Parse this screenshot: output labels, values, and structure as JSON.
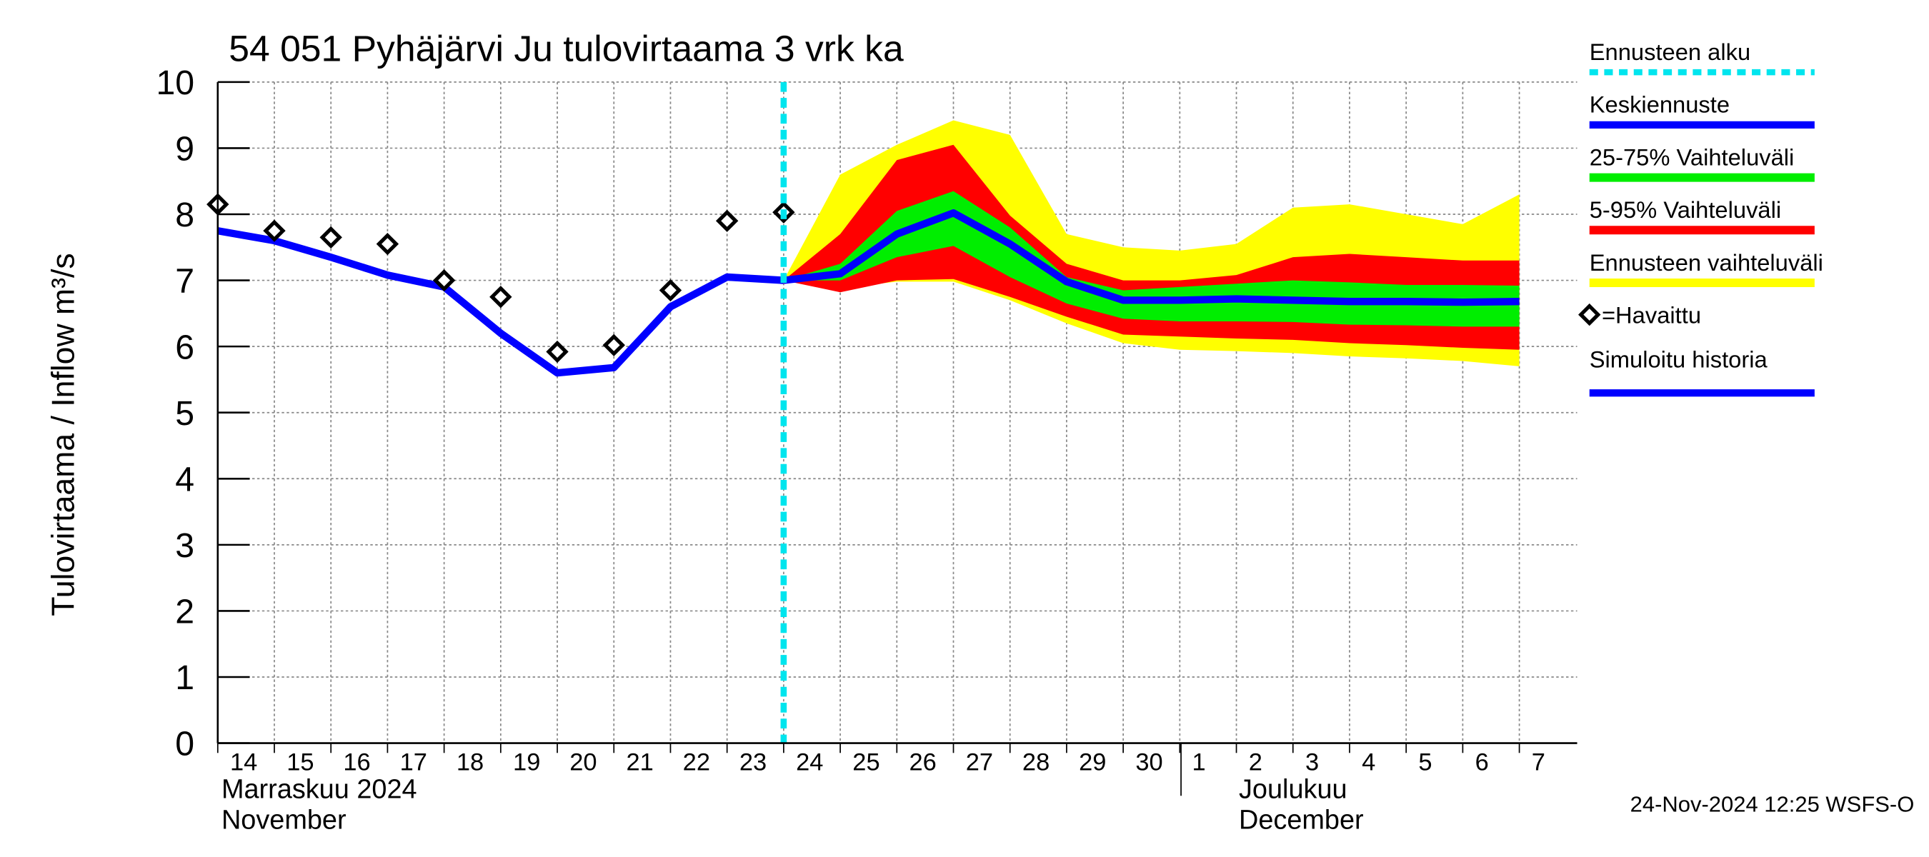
{
  "chart_data": {
    "type": "line",
    "title": "54 051 Pyhäjärvi Ju tulovirtaama 3 vrk ka",
    "y_label": "Tulovirtaama / Inflow    m³/s",
    "timestamp": "24-Nov-2024 12:25 WSFS-O",
    "months": [
      {
        "fi": "Marraskuu 2024",
        "en": "November"
      },
      {
        "fi": "Joulukuu",
        "en": "December"
      }
    ],
    "categories": [
      "14",
      "15",
      "16",
      "17",
      "18",
      "19",
      "20",
      "21",
      "22",
      "23",
      "24",
      "25",
      "26",
      "27",
      "28",
      "29",
      "30",
      "1",
      "2",
      "3",
      "4",
      "5",
      "6",
      "7"
    ],
    "ylim": [
      0,
      10
    ],
    "yticks": [
      0,
      1,
      2,
      3,
      4,
      5,
      6,
      7,
      8,
      9,
      10
    ],
    "grid": true,
    "forecast_start": {
      "name": "Ennusteen alku",
      "color": "#00e5ee",
      "x": "24"
    },
    "series": [
      {
        "name": "Keskiennuste",
        "color": "#0000ff",
        "style": "line",
        "values": [
          null,
          null,
          null,
          null,
          null,
          null,
          null,
          null,
          null,
          null,
          7.0,
          7.1,
          7.7,
          8.02,
          7.55,
          6.98,
          6.7,
          6.7,
          6.72,
          6.7,
          6.68,
          6.68,
          6.67,
          6.68
        ]
      },
      {
        "name": "25-75% Vaihteluväli",
        "color": "#00ee00",
        "style": "band",
        "low": [
          null,
          null,
          null,
          null,
          null,
          null,
          null,
          null,
          null,
          null,
          7.0,
          7.0,
          7.35,
          7.52,
          7.05,
          6.65,
          6.42,
          6.38,
          6.38,
          6.37,
          6.33,
          6.32,
          6.3,
          6.3
        ],
        "high": [
          null,
          null,
          null,
          null,
          null,
          null,
          null,
          null,
          null,
          null,
          7.0,
          7.25,
          8.05,
          8.35,
          7.8,
          7.05,
          6.85,
          6.9,
          6.95,
          7.0,
          6.97,
          6.93,
          6.93,
          6.92
        ]
      },
      {
        "name": "5-95% Vaihteluväli",
        "color": "#ff0000",
        "style": "band",
        "low": [
          null,
          null,
          null,
          null,
          null,
          null,
          null,
          null,
          null,
          null,
          7.0,
          6.82,
          7.0,
          7.02,
          6.75,
          6.45,
          6.18,
          6.15,
          6.12,
          6.1,
          6.05,
          6.02,
          5.98,
          5.95
        ],
        "high": [
          null,
          null,
          null,
          null,
          null,
          null,
          null,
          null,
          null,
          null,
          7.0,
          7.7,
          8.82,
          9.05,
          7.98,
          7.25,
          7.0,
          7.0,
          7.08,
          7.35,
          7.4,
          7.35,
          7.3,
          7.3
        ]
      },
      {
        "name": "Ennusteen vaihteluväli",
        "color": "#ffff00",
        "style": "band",
        "low": [
          null,
          null,
          null,
          null,
          null,
          null,
          null,
          null,
          null,
          null,
          7.0,
          6.88,
          6.98,
          6.98,
          6.7,
          6.35,
          6.05,
          5.95,
          5.93,
          5.9,
          5.85,
          5.82,
          5.78,
          5.7
        ],
        "high": [
          null,
          null,
          null,
          null,
          null,
          null,
          null,
          null,
          null,
          null,
          7.0,
          8.6,
          9.05,
          9.42,
          9.2,
          7.7,
          7.5,
          7.45,
          7.55,
          8.1,
          8.15,
          8.0,
          7.85,
          8.3
        ]
      },
      {
        "name": "=Havaittu",
        "color": "#000000",
        "style": "marker",
        "values": [
          8.15,
          7.75,
          7.65,
          7.55,
          7.0,
          6.75,
          5.92,
          6.02,
          6.85,
          7.9,
          8.03,
          null,
          null,
          null,
          null,
          null,
          null,
          null,
          null,
          null,
          null,
          null,
          null,
          null
        ]
      },
      {
        "name": "Simuloitu historia",
        "color": "#0000ff",
        "style": "line",
        "values": [
          7.75,
          7.6,
          7.35,
          7.08,
          6.9,
          6.2,
          5.6,
          5.68,
          6.6,
          7.05,
          7.0,
          null,
          null,
          null,
          null,
          null,
          null,
          null,
          null,
          null,
          null,
          null,
          null,
          null
        ]
      }
    ]
  }
}
